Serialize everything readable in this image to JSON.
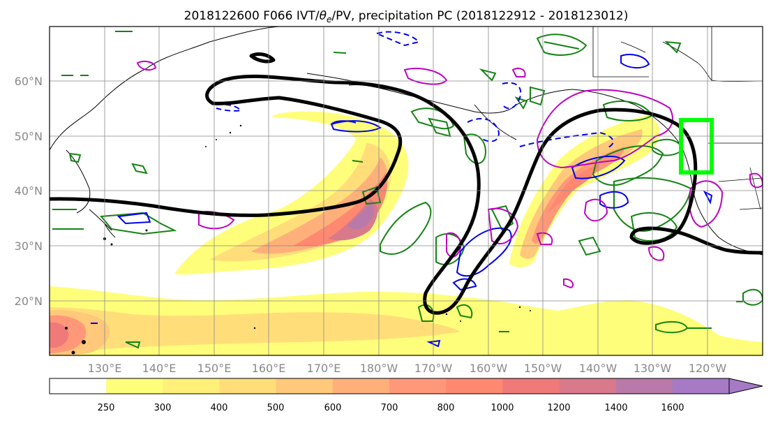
{
  "title": {
    "prefix": "2018122600 F066 IVT/",
    "theta": "θ",
    "sub": "e",
    "suffix": "/PV, precipitation PC (2018122912 - 2018123012)"
  },
  "map": {
    "lat_labels": [
      "60°N",
      "50°N",
      "40°N",
      "30°N",
      "20°N"
    ],
    "lon_labels": [
      "130°E",
      "140°E",
      "150°E",
      "160°E",
      "170°E",
      "180°W",
      "170°W",
      "160°W",
      "150°W",
      "140°W",
      "130°W",
      "120°W"
    ],
    "lat_range": [
      10,
      70
    ],
    "lon_range": [
      120,
      250
    ],
    "grid": true
  },
  "colorbar": {
    "ticks": [
      "250",
      "300",
      "400",
      "500",
      "600",
      "700",
      "800",
      "1000",
      "1200",
      "1400",
      "1600"
    ],
    "colors": [
      "#ffffff",
      "#fffe7a",
      "#fff07a",
      "#ffde7a",
      "#ffc87a",
      "#ffb07a",
      "#ff9878",
      "#ff8870",
      "#f07a7a",
      "#d87a8c",
      "#b97aaa",
      "#a67ac5"
    ],
    "extend": "max"
  },
  "colors": {
    "ivt_contour": "#000000",
    "precip_pos": "#138313",
    "precip_neg": "#0000ee",
    "theta_e": "#bf00bf",
    "box": "#00ff00",
    "coast": "#000000"
  }
}
